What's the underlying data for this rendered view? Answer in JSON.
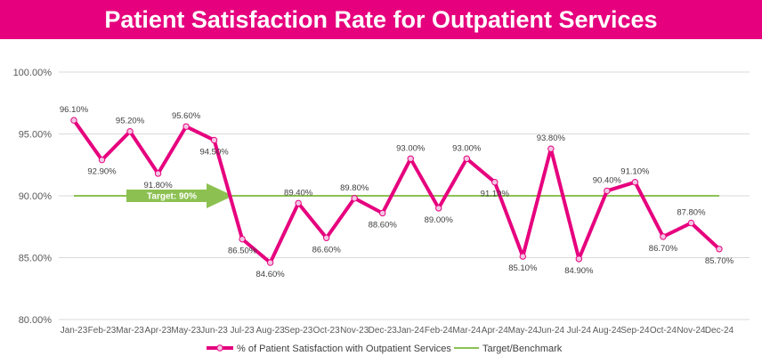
{
  "chart_data": {
    "type": "line",
    "title": "Patient Satisfaction Rate for Outpatient Services",
    "categories": [
      "Jan-23",
      "Feb-23",
      "Mar-23",
      "Apr-23",
      "May-23",
      "Jun-23",
      "Jul-23",
      "Aug-23",
      "Sep-23",
      "Oct-23",
      "Nov-23",
      "Dec-23",
      "Jan-24",
      "Feb-24",
      "Mar-24",
      "Apr-24",
      "May-24",
      "Jun-24",
      "Jul-24",
      "Aug-24",
      "Sep-24",
      "Oct-24",
      "Nov-24",
      "Dec-24"
    ],
    "series": [
      {
        "name": "% of Patient Satisfaction with Outpatient Services",
        "values": [
          96.1,
          92.9,
          95.2,
          91.8,
          95.6,
          94.5,
          86.5,
          84.6,
          89.4,
          86.6,
          89.8,
          88.6,
          93.0,
          89.0,
          93.0,
          91.1,
          85.1,
          93.8,
          84.9,
          90.4,
          91.1,
          86.7,
          87.8,
          85.7
        ],
        "labels": [
          "96.10%",
          "92.90%",
          "95.20%",
          "91.80%",
          "95.60%",
          "94.50%",
          "86.50%",
          "84.60%",
          "89.40%",
          "86.60%",
          "89.80%",
          "88.60%",
          "93.00%",
          "89.00%",
          "93.00%",
          "91.10%",
          "85.10%",
          "93.80%",
          "84.90%",
          "90.40%",
          "91.10%",
          "86.70%",
          "87.80%",
          "85.70%"
        ],
        "color": "#e6007e"
      },
      {
        "name": "Target/Benchmark",
        "values": [
          90,
          90,
          90,
          90,
          90,
          90,
          90,
          90,
          90,
          90,
          90,
          90,
          90,
          90,
          90,
          90,
          90,
          90,
          90,
          90,
          90,
          90,
          90,
          90
        ],
        "color": "#8cc152"
      }
    ],
    "ylim": [
      80,
      100
    ],
    "yticks": [
      80,
      85,
      90,
      95,
      100
    ],
    "ytick_labels": [
      "80.00%",
      "85.00%",
      "90.00%",
      "95.00%",
      "100.00%"
    ],
    "grid": true,
    "legend_position": "bottom",
    "annotation": {
      "text": "Target: 90%",
      "color": "#8cc152"
    }
  }
}
